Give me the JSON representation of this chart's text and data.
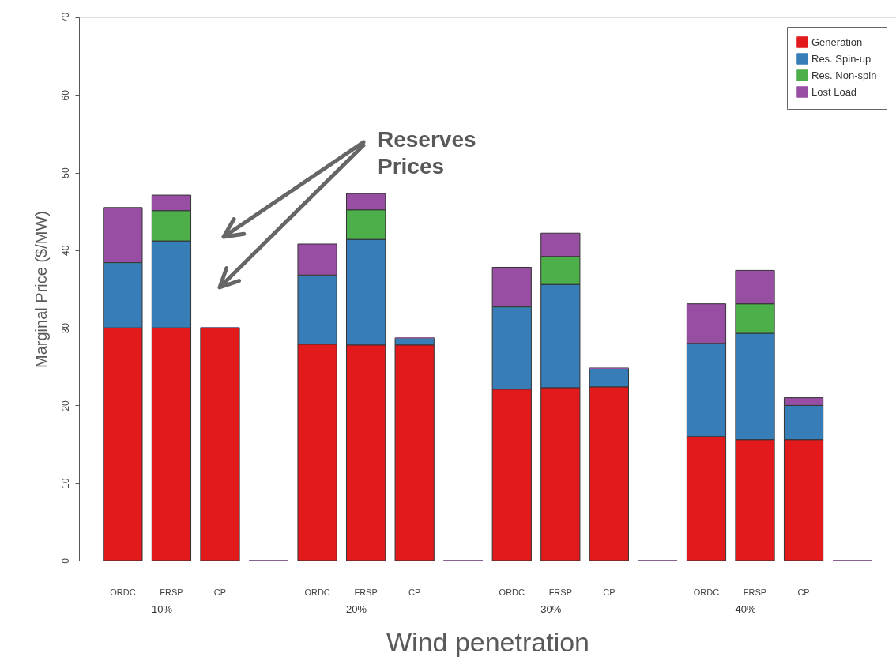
{
  "chart_data": {
    "type": "bar",
    "stacked": true,
    "categories": [
      "ORDC",
      "FRSP",
      "CP",
      null,
      "ORDC",
      "FRSP",
      "CP",
      null,
      "ORDC",
      "FRSP",
      "CP",
      null,
      "ORDC",
      "FRSP",
      "CP",
      null
    ],
    "series": [
      {
        "name": "Generation",
        "color": "#e31a1c",
        "values": [
          30.0,
          30.0,
          30.0,
          0,
          27.9,
          27.8,
          27.8,
          0,
          22.1,
          22.3,
          22.4,
          0,
          16.0,
          15.6,
          15.6,
          0
        ]
      },
      {
        "name": "Res. Spin-up",
        "color": "#377eb8",
        "values": [
          8.4,
          11.2,
          0,
          0,
          8.9,
          13.6,
          0.9,
          0,
          10.6,
          13.3,
          2.4,
          0,
          12.0,
          13.7,
          4.4,
          0
        ]
      },
      {
        "name": "Res. Non-spin",
        "color": "#4daf4a",
        "values": [
          0,
          3.9,
          0,
          0,
          0,
          3.8,
          0,
          0,
          0,
          3.6,
          0,
          0,
          0,
          3.8,
          0,
          0
        ]
      },
      {
        "name": "Lost Load",
        "color": "#984ea3",
        "values": [
          7.1,
          2.0,
          0,
          0,
          4.0,
          2.1,
          0,
          0,
          5.1,
          3.0,
          0,
          0,
          5.1,
          4.3,
          1.0,
          0
        ]
      }
    ],
    "xlabel": "Wind penetration",
    "ylabel": "Marginal Price ($/MW)",
    "ylim": [
      0,
      70
    ],
    "yticks": [
      0,
      10,
      20,
      30,
      40,
      50,
      60,
      70
    ],
    "grid": false,
    "legend": "top right",
    "annotations": [
      "10%",
      "20%",
      "30%",
      "40%",
      "Reserves Prices"
    ]
  }
}
